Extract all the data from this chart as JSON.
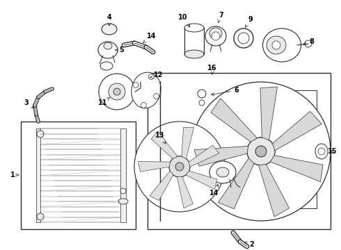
{
  "bg_color": "#ffffff",
  "lc": "#2a2a2a",
  "fig_w": 4.9,
  "fig_h": 3.6,
  "dpi": 100
}
